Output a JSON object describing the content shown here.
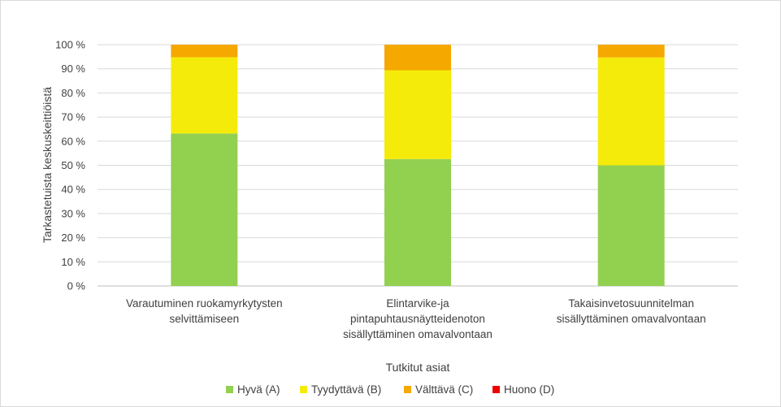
{
  "chart_data": {
    "type": "bar",
    "stacked": true,
    "title": "",
    "xlabel": "Tutkitut asiat",
    "ylabel": "Tarkastetuista keskuskeittiöistä",
    "ylim": [
      0,
      100
    ],
    "y_ticks": [
      "0 %",
      "10 %",
      "20 %",
      "30 %",
      "40 %",
      "50 %",
      "60 %",
      "70 %",
      "80 %",
      "90 %",
      "100 %"
    ],
    "grid": true,
    "legend_position": "bottom",
    "categories": [
      [
        "Varautuminen ruokamyrkytysten",
        "selvittämiseen"
      ],
      [
        "Elintarvike-ja",
        "pintapuhtausnäytteidenoton",
        "sisällyttäminen omavalvontaan"
      ],
      [
        "Takaisinvetosuunnitelman",
        "sisällyttäminen omavalvontaan"
      ]
    ],
    "series": [
      {
        "name": "Hyvä (A)",
        "color": "#92d050",
        "values": [
          63.2,
          52.6,
          50.0
        ]
      },
      {
        "name": "Tyydyttävä (B)",
        "color": "#f5eb0a",
        "values": [
          31.6,
          36.8,
          44.7
        ]
      },
      {
        "name": "Välttävä (C)",
        "color": "#f5a800",
        "values": [
          5.2,
          10.6,
          5.3
        ]
      },
      {
        "name": "Huono (D)",
        "color": "#ee0000",
        "values": [
          0,
          0,
          0
        ]
      }
    ]
  }
}
